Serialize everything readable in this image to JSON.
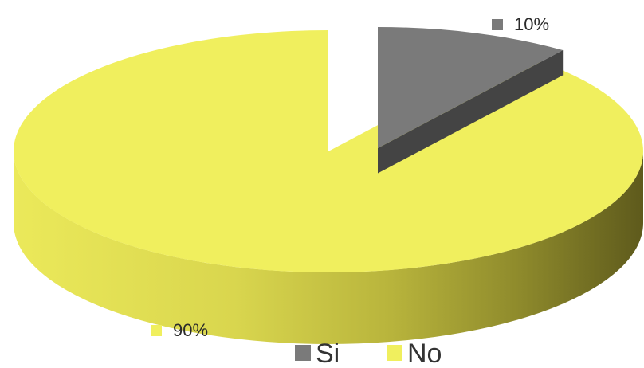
{
  "chart_data": {
    "type": "pie",
    "style": "3d-exploded",
    "categories": [
      "Si",
      "No"
    ],
    "values": [
      10,
      90
    ],
    "data_labels": [
      "10%",
      "90%"
    ],
    "colors": {
      "Si": "#7a7a7a",
      "No": "#f0ef5e"
    },
    "legend": {
      "position": "bottom",
      "entries": [
        "Si",
        "No"
      ]
    }
  }
}
